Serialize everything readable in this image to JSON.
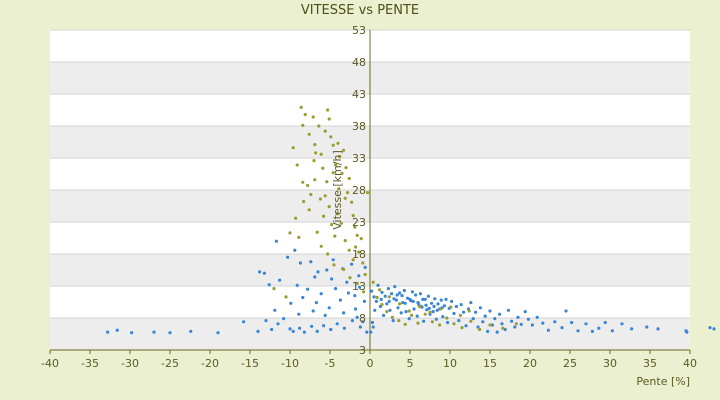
{
  "chart_data": {
    "type": "scatter",
    "title": "VITESSE vs PENTE",
    "xlabel": "Pente [%]",
    "ylabel": "Vitesse [km/h]",
    "xlim": [
      -40,
      40
    ],
    "ylim": [
      3,
      53
    ],
    "x_ticks": [
      -40,
      -35,
      -30,
      -25,
      -20,
      -15,
      -10,
      -5,
      0,
      5,
      10,
      15,
      20,
      25,
      30,
      35,
      40
    ],
    "y_ticks": [
      3,
      8,
      13,
      18,
      23,
      28,
      33,
      38,
      43,
      48,
      53
    ],
    "grid": "horizontal",
    "legend": "none",
    "series": [
      {
        "color": "#3a86d6",
        "points": [
          [
            -32.8,
            5.8
          ],
          [
            -31.6,
            6.1
          ],
          [
            -29.8,
            5.7
          ],
          [
            -27.0,
            5.8
          ],
          [
            -25.0,
            5.7
          ],
          [
            -22.4,
            5.9
          ],
          [
            -19.0,
            5.7
          ],
          [
            -15.8,
            7.4
          ],
          [
            -14.0,
            5.9
          ],
          [
            -12.3,
            6.2
          ],
          [
            -11.5,
            7.1
          ],
          [
            -10.8,
            7.9
          ],
          [
            -10.0,
            6.3
          ],
          [
            -9.6,
            5.9
          ],
          [
            -8.8,
            6.4
          ],
          [
            -8.2,
            5.8
          ],
          [
            -7.3,
            6.7
          ],
          [
            -6.6,
            5.9
          ],
          [
            -5.8,
            6.8
          ],
          [
            -4.9,
            6.2
          ],
          [
            -4.1,
            7.1
          ],
          [
            -3.2,
            6.4
          ],
          [
            -2.2,
            7.6
          ],
          [
            -1.2,
            6.6
          ],
          [
            -0.4,
            5.8
          ],
          [
            -13.8,
            15.2
          ],
          [
            -13.2,
            15.0
          ],
          [
            -11.7,
            20.0
          ],
          [
            -10.3,
            17.5
          ],
          [
            -9.4,
            18.6
          ],
          [
            -8.7,
            16.6
          ],
          [
            -7.4,
            16.8
          ],
          [
            -6.5,
            15.2
          ],
          [
            -5.4,
            15.5
          ],
          [
            -4.6,
            17.1
          ],
          [
            -3.4,
            15.7
          ],
          [
            -2.3,
            16.4
          ],
          [
            -1.4,
            14.6
          ],
          [
            -0.6,
            15.9
          ],
          [
            -12.6,
            13.2
          ],
          [
            -11.3,
            13.9
          ],
          [
            -9.1,
            13.1
          ],
          [
            -7.8,
            12.5
          ],
          [
            -6.1,
            11.8
          ],
          [
            -4.3,
            12.6
          ],
          [
            -2.7,
            11.9
          ],
          [
            -1.3,
            12.8
          ],
          [
            -9.9,
            10.3
          ],
          [
            -8.4,
            11.2
          ],
          [
            -6.7,
            10.4
          ],
          [
            -5.1,
            9.6
          ],
          [
            -3.7,
            10.8
          ],
          [
            -1.8,
            9.4
          ],
          [
            -0.7,
            10.6
          ],
          [
            -8.9,
            8.6
          ],
          [
            -7.1,
            9.1
          ],
          [
            -5.6,
            8.4
          ],
          [
            -3.3,
            8.8
          ],
          [
            -1.6,
            8.1
          ],
          [
            -2.9,
            13.6
          ],
          [
            -4.8,
            14.1
          ],
          [
            -6.9,
            14.4
          ],
          [
            -1.9,
            11.5
          ],
          [
            -0.9,
            7.4
          ],
          [
            -11.9,
            9.2
          ],
          [
            -13.0,
            7.6
          ],
          [
            0.2,
            12.2
          ],
          [
            0.5,
            11.3
          ],
          [
            0.8,
            10.6
          ],
          [
            1.0,
            13.1
          ],
          [
            1.3,
            9.8
          ],
          [
            1.5,
            12.0
          ],
          [
            1.7,
            8.4
          ],
          [
            1.9,
            11.4
          ],
          [
            2.1,
            10.2
          ],
          [
            2.3,
            12.6
          ],
          [
            2.5,
            9.2
          ],
          [
            2.7,
            11.8
          ],
          [
            2.9,
            7.6
          ],
          [
            3.1,
            12.9
          ],
          [
            3.3,
            10.8
          ],
          [
            3.5,
            9.6
          ],
          [
            3.7,
            11.9
          ],
          [
            3.9,
            8.8
          ],
          [
            4.1,
            10.4
          ],
          [
            4.3,
            12.3
          ],
          [
            4.5,
            9.0
          ],
          [
            4.7,
            11.1
          ],
          [
            4.9,
            7.9
          ],
          [
            5.1,
            10.7
          ],
          [
            5.3,
            12.1
          ],
          [
            5.5,
            9.4
          ],
          [
            5.7,
            11.6
          ],
          [
            5.9,
            8.3
          ],
          [
            6.1,
            10.1
          ],
          [
            6.3,
            11.8
          ],
          [
            6.5,
            9.7
          ],
          [
            6.7,
            7.5
          ],
          [
            6.9,
            10.9
          ],
          [
            7.1,
            9.3
          ],
          [
            7.3,
            11.4
          ],
          [
            7.5,
            8.6
          ],
          [
            7.7,
            10.3
          ],
          [
            7.9,
            9.0
          ],
          [
            8.1,
            11.0
          ],
          [
            8.3,
            7.8
          ],
          [
            8.5,
            10.2
          ],
          [
            8.7,
            9.4
          ],
          [
            8.9,
            10.8
          ],
          [
            9.1,
            8.2
          ],
          [
            9.3,
            9.9
          ],
          [
            9.5,
            10.9
          ],
          [
            9.7,
            7.3
          ],
          [
            9.9,
            9.5
          ],
          [
            10.2,
            10.6
          ],
          [
            10.5,
            8.7
          ],
          [
            10.8,
            9.8
          ],
          [
            11.1,
            7.6
          ],
          [
            11.4,
            10.1
          ],
          [
            11.7,
            8.9
          ],
          [
            12.0,
            6.8
          ],
          [
            12.3,
            9.4
          ],
          [
            12.6,
            10.4
          ],
          [
            12.9,
            7.9
          ],
          [
            13.2,
            8.9
          ],
          [
            13.5,
            6.6
          ],
          [
            13.8,
            9.6
          ],
          [
            14.1,
            7.4
          ],
          [
            14.4,
            8.3
          ],
          [
            14.7,
            5.9
          ],
          [
            15.0,
            9.1
          ],
          [
            15.3,
            6.9
          ],
          [
            15.6,
            7.9
          ],
          [
            15.9,
            5.8
          ],
          [
            16.2,
            8.6
          ],
          [
            16.5,
            7.1
          ],
          [
            16.9,
            6.2
          ],
          [
            17.3,
            9.2
          ],
          [
            17.7,
            7.5
          ],
          [
            18.1,
            6.6
          ],
          [
            18.5,
            8.1
          ],
          [
            18.9,
            7.0
          ],
          [
            19.4,
            9.0
          ],
          [
            19.8,
            7.8
          ],
          [
            20.3,
            6.9
          ],
          [
            20.9,
            8.1
          ],
          [
            21.6,
            7.2
          ],
          [
            22.3,
            6.1
          ],
          [
            23.1,
            7.4
          ],
          [
            24.0,
            6.5
          ],
          [
            24.5,
            9.1
          ],
          [
            25.2,
            7.3
          ],
          [
            26.0,
            6.0
          ],
          [
            27.0,
            7.1
          ],
          [
            27.8,
            5.9
          ],
          [
            28.6,
            6.4
          ],
          [
            29.4,
            7.3
          ],
          [
            30.3,
            6.0
          ],
          [
            31.5,
            7.1
          ],
          [
            32.7,
            6.3
          ],
          [
            34.6,
            6.6
          ],
          [
            36.0,
            6.3
          ],
          [
            39.5,
            6.0
          ],
          [
            39.6,
            5.8
          ],
          [
            42.5,
            6.5
          ],
          [
            43.0,
            6.3
          ],
          [
            3.0,
            11.0
          ],
          [
            4.0,
            11.5
          ],
          [
            5.0,
            10.9
          ],
          [
            6.0,
            10.4
          ],
          [
            7.0,
            10.0
          ],
          [
            8.0,
            9.8
          ],
          [
            9.0,
            9.6
          ],
          [
            4.4,
            10.3
          ],
          [
            5.4,
            10.6
          ],
          [
            6.4,
            9.8
          ],
          [
            7.4,
            9.5
          ],
          [
            8.4,
            9.2
          ],
          [
            3.4,
            11.6
          ],
          [
            6.6,
            10.9
          ],
          [
            2.4,
            10.6
          ],
          [
            1.4,
            10.9
          ],
          [
            0.6,
            9.2
          ],
          [
            0.3,
            7.3
          ],
          [
            0.1,
            5.8
          ],
          [
            0.4,
            6.6
          ]
        ]
      },
      {
        "color": "#9c9c33",
        "points": [
          [
            -8.6,
            40.9
          ],
          [
            -8.1,
            39.8
          ],
          [
            -8.4,
            38.1
          ],
          [
            -7.6,
            36.7
          ],
          [
            -7.1,
            39.4
          ],
          [
            -6.9,
            35.1
          ],
          [
            -6.4,
            38.0
          ],
          [
            -6.1,
            33.6
          ],
          [
            -5.6,
            37.2
          ],
          [
            -5.3,
            40.5
          ],
          [
            -5.1,
            39.1
          ],
          [
            -4.9,
            36.3
          ],
          [
            -4.6,
            35.0
          ],
          [
            -4.3,
            31.9
          ],
          [
            -4.0,
            35.3
          ],
          [
            -3.8,
            33.2
          ],
          [
            -3.5,
            30.6
          ],
          [
            -3.3,
            34.2
          ],
          [
            -3.0,
            31.5
          ],
          [
            -2.8,
            27.6
          ],
          [
            -2.6,
            29.8
          ],
          [
            -2.3,
            26.1
          ],
          [
            -2.1,
            24.0
          ],
          [
            -1.9,
            22.2
          ],
          [
            -1.6,
            20.9
          ],
          [
            -1.4,
            18.3
          ],
          [
            -1.1,
            20.4
          ],
          [
            -0.9,
            16.6
          ],
          [
            -0.6,
            14.8
          ],
          [
            -0.3,
            27.6
          ],
          [
            -9.6,
            34.6
          ],
          [
            -9.1,
            31.9
          ],
          [
            -8.4,
            29.2
          ],
          [
            -7.8,
            28.7
          ],
          [
            -7.4,
            27.3
          ],
          [
            -6.9,
            29.6
          ],
          [
            -6.2,
            26.6
          ],
          [
            -5.8,
            23.9
          ],
          [
            -5.6,
            27.1
          ],
          [
            -5.1,
            25.4
          ],
          [
            -4.8,
            22.6
          ],
          [
            -4.4,
            20.8
          ],
          [
            -4.1,
            24.3
          ],
          [
            -3.6,
            22.8
          ],
          [
            -3.1,
            20.1
          ],
          [
            -2.6,
            18.6
          ],
          [
            -2.1,
            17.1
          ],
          [
            -1.8,
            19.1
          ],
          [
            -6.6,
            21.4
          ],
          [
            -7.6,
            24.9
          ],
          [
            -8.3,
            26.2
          ],
          [
            -9.3,
            23.6
          ],
          [
            -8.9,
            20.6
          ],
          [
            -10.0,
            21.3
          ],
          [
            -6.1,
            19.2
          ],
          [
            -5.3,
            18.0
          ],
          [
            -4.5,
            16.3
          ],
          [
            -3.3,
            15.6
          ],
          [
            -2.5,
            14.3
          ],
          [
            -1.6,
            13.4
          ],
          [
            -0.8,
            12.1
          ],
          [
            -12.0,
            12.6
          ],
          [
            -10.5,
            11.3
          ],
          [
            -3.9,
            28.2
          ],
          [
            -4.6,
            30.7
          ],
          [
            -5.9,
            31.4
          ],
          [
            -7.0,
            32.6
          ],
          [
            -3.1,
            26.7
          ],
          [
            -5.4,
            29.3
          ],
          [
            -6.8,
            33.8
          ],
          [
            0.4,
            13.6
          ],
          [
            0.9,
            11.2
          ],
          [
            1.5,
            10.1
          ],
          [
            2.1,
            9.0
          ],
          [
            2.8,
            8.1
          ],
          [
            3.6,
            7.6
          ],
          [
            4.4,
            7.0
          ],
          [
            5.2,
            8.4
          ],
          [
            6.0,
            7.2
          ],
          [
            6.9,
            8.6
          ],
          [
            7.8,
            7.4
          ],
          [
            8.7,
            6.9
          ],
          [
            9.6,
            8.0
          ],
          [
            10.5,
            7.1
          ],
          [
            11.5,
            6.5
          ],
          [
            12.6,
            7.5
          ],
          [
            13.7,
            6.2
          ],
          [
            15.0,
            6.9
          ],
          [
            16.6,
            6.4
          ],
          [
            18.3,
            7.1
          ],
          [
            1.2,
            12.4
          ],
          [
            2.4,
            11.3
          ],
          [
            3.7,
            10.2
          ],
          [
            4.9,
            9.1
          ],
          [
            6.2,
            9.8
          ],
          [
            7.5,
            8.9
          ],
          [
            8.8,
            9.4
          ],
          [
            10.1,
            9.7
          ],
          [
            11.3,
            8.4
          ],
          [
            12.4,
            9.1
          ]
        ]
      }
    ]
  }
}
